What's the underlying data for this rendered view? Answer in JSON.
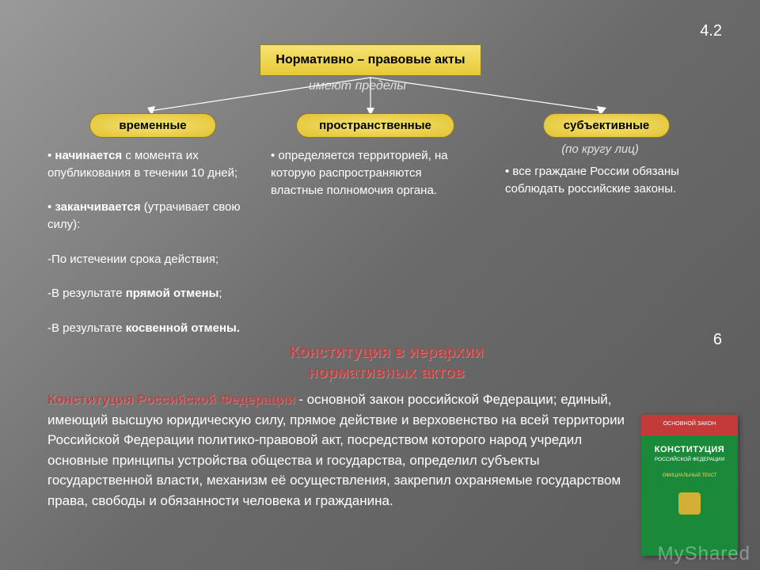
{
  "slide": {
    "topNumber": "4.2",
    "midNumber": "6"
  },
  "title": "Нормативно – правовые акты",
  "limitsLabel": "имеют пределы",
  "pills": {
    "p1": "временные",
    "p2": "пространственные",
    "p3": "субъективные"
  },
  "columns": {
    "c1": {
      "html": "• <b>начинается</b> с момента их опубликования в течении 10 дней;<br><br>• <b>заканчивается</b> (утрачивает свою силу):<br><br>-По истечении срока действия;<br><br>-В результате <b>прямой отмены</b>;<br><br>-В результате <b>косвенной отмены.</b>"
    },
    "c2": {
      "html": "• определяется территорией, на которую распространяются властные полномочия органа."
    },
    "c3": {
      "sublabel": "(по кругу лиц)",
      "html": "• все граждане России обязаны соблюдать российские законы."
    }
  },
  "heading": "Конституция в иерархии нормативных актов",
  "paragraph": {
    "lead": "Конституция Российской Федерации",
    "rest": " - основной закон российской Федерации; единый, имеющий высшую юридическую силу, прямое действие и верховенство на всей территории Российской Федерации политико-правовой акт, посредством которого народ учредил основные принципы устройства общества и государства, определил субъекты государственной власти, механизм её осуществления, закрепил охраняемые государством права, свободы и обязанности человека и гражданина."
  },
  "book": {
    "top": "ОСНОВНОЙ ЗАКОН",
    "title": "КОНСТИТУЦИЯ",
    "subtitle": "РОССИЙСКОЙ ФЕДЕРАЦИИ",
    "official": "ОФИЦИАЛЬНЫЙ ТЕКСТ"
  },
  "watermark": "MyShared",
  "colors": {
    "pill_bg_top": "#f5e373",
    "pill_bg_bottom": "#e2c233",
    "pill_border": "#8a7a2a",
    "heading_red": "#b94242",
    "bg_grad_start": "#9a9a9a",
    "bg_grad_end": "#5a5a5a",
    "book_red": "#c23a3a",
    "book_green": "#1a8a3a"
  }
}
